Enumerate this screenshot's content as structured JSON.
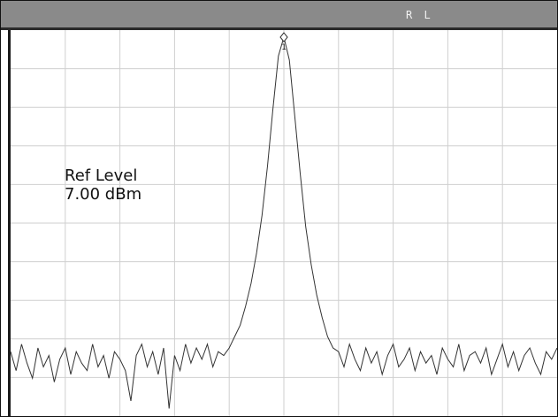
{
  "window": {
    "title_bar_text": "R L"
  },
  "display": {
    "ref_level_label": "Ref Level",
    "ref_level_value": "7.00 dBm",
    "marker_number": "1",
    "grid_divisions_x": 10,
    "grid_divisions_y": 10,
    "colors": {
      "title_bar": "#8a8a8a",
      "grid": "#cfcfcf",
      "trace": "#333333",
      "text": "#111111"
    }
  },
  "chart_data": {
    "type": "line",
    "title": "",
    "xlabel": "",
    "ylabel": "",
    "xlim": [
      0,
      10
    ],
    "ylim": [
      0,
      10
    ],
    "grid": true,
    "series": [
      {
        "values_description_only": false,
        "x": [
          0,
          0.1,
          0.2,
          0.3,
          0.4,
          0.5,
          0.6,
          0.7,
          0.8,
          0.9,
          1.0,
          1.1,
          1.2,
          1.3,
          1.4,
          1.5,
          1.6,
          1.7,
          1.8,
          1.9,
          2.0,
          2.1,
          2.2,
          2.3,
          2.4,
          2.5,
          2.6,
          2.7,
          2.8,
          2.9,
          3.0,
          3.1,
          3.2,
          3.3,
          3.4,
          3.5,
          3.6,
          3.7,
          3.8,
          3.9,
          4.0,
          4.1,
          4.2,
          4.3,
          4.4,
          4.5,
          4.6,
          4.7,
          4.8,
          4.9,
          5.0,
          5.1,
          5.2,
          5.3,
          5.4,
          5.5,
          5.6,
          5.7,
          5.8,
          5.9,
          6.0,
          6.1,
          6.2,
          6.3,
          6.4,
          6.5,
          6.6,
          6.7,
          6.8,
          6.9,
          7.0,
          7.1,
          7.2,
          7.3,
          7.4,
          7.5,
          7.6,
          7.7,
          7.8,
          7.9,
          8.0,
          8.1,
          8.2,
          8.3,
          8.4,
          8.5,
          8.6,
          8.7,
          8.8,
          8.9,
          9.0,
          9.1,
          9.2,
          9.3,
          9.4,
          9.5,
          9.6,
          9.7,
          9.8,
          9.9,
          10.0
        ],
        "values": [
          1.7,
          1.2,
          1.9,
          1.4,
          1.0,
          1.8,
          1.3,
          1.6,
          0.9,
          1.5,
          1.8,
          1.1,
          1.7,
          1.4,
          1.2,
          1.9,
          1.3,
          1.6,
          1.0,
          1.7,
          1.5,
          1.2,
          0.4,
          1.6,
          1.9,
          1.3,
          1.7,
          1.1,
          1.8,
          0.2,
          1.6,
          1.2,
          1.9,
          1.4,
          1.8,
          1.5,
          1.9,
          1.3,
          1.7,
          1.6,
          1.8,
          2.1,
          2.4,
          2.9,
          3.5,
          4.3,
          5.3,
          6.6,
          8.1,
          9.5,
          10.0,
          9.4,
          7.9,
          6.4,
          5.0,
          4.0,
          3.2,
          2.6,
          2.1,
          1.8,
          1.7,
          1.3,
          1.9,
          1.5,
          1.2,
          1.8,
          1.4,
          1.7,
          1.1,
          1.6,
          1.9,
          1.3,
          1.5,
          1.8,
          1.2,
          1.7,
          1.4,
          1.6,
          1.1,
          1.8,
          1.5,
          1.3,
          1.9,
          1.2,
          1.6,
          1.7,
          1.4,
          1.8,
          1.1,
          1.5,
          1.9,
          1.3,
          1.7,
          1.2,
          1.6,
          1.8,
          1.4,
          1.1,
          1.7,
          1.5,
          1.8
        ]
      }
    ]
  }
}
